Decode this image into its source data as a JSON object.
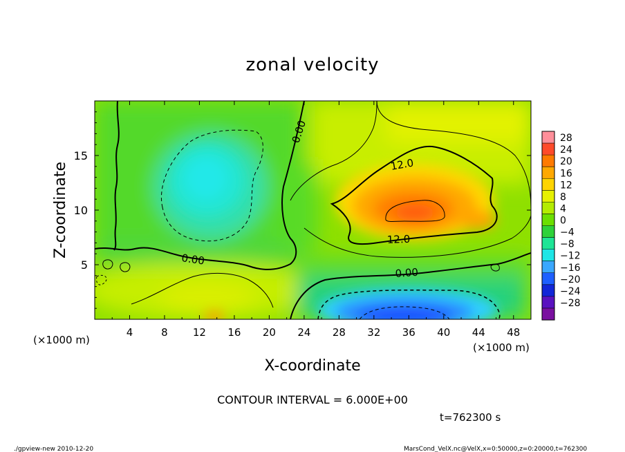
{
  "chart_data": {
    "type": "heatmap",
    "title": "zonal velocity",
    "xlabel": "X-coordinate",
    "ylabel": "Z-coordinate",
    "x_unit": "(×1000 m)",
    "xlim": [
      0,
      50
    ],
    "ylim": [
      0,
      20
    ],
    "x_ticks": [
      4,
      8,
      12,
      16,
      20,
      24,
      28,
      32,
      36,
      40,
      44,
      48
    ],
    "y_ticks": [
      5,
      10,
      15
    ],
    "colorbar": {
      "levels": [
        28,
        24,
        20,
        16,
        12,
        8,
        4,
        0,
        -4,
        -8,
        -12,
        -16,
        -20,
        -24,
        -28
      ],
      "colors": [
        "#ff8f9a",
        "#ff4a2a",
        "#ff7a00",
        "#ffa800",
        "#ffd400",
        "#e6f000",
        "#b4ec00",
        "#6cdf00",
        "#2ed23a",
        "#1ee596",
        "#1ee6e6",
        "#3aa7ff",
        "#1e5fff",
        "#1226d8",
        "#5a12c0",
        "#7a10a0"
      ]
    },
    "contour_labels": [
      "0.00",
      "0.00",
      "0.00",
      "12.0",
      "12.0"
    ],
    "contour_interval": "CONTOUR INTERVAL = 6.000E+00",
    "time": "t=762300 s",
    "footer_left": "./gpview-new  2010-12-20",
    "footer_right": "MarsCond_VelX.nc@VelX,x=0:50000,z=0:20000,t=762300"
  }
}
